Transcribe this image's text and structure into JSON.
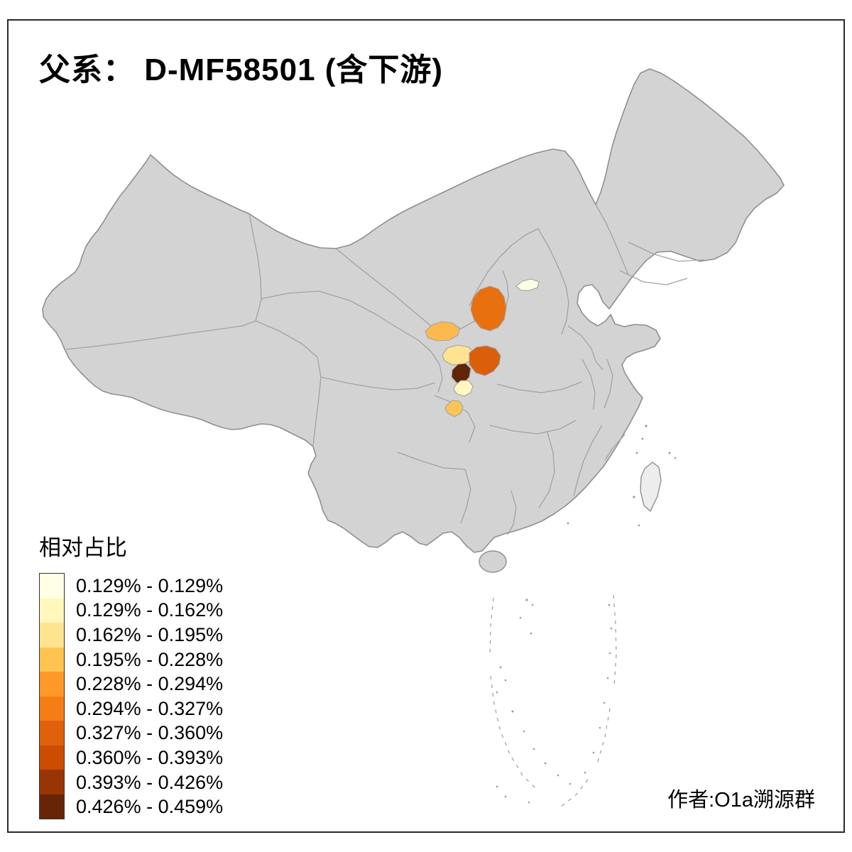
{
  "title": "父系： D-MF58501 (含下游)",
  "author": "作者:O1a溯源群",
  "legend": {
    "title": "相对占比"
  },
  "map_colors": {
    "land": "#D3D3D3",
    "border": "#8F8F8F",
    "inner_border": "#A2A2A2",
    "island": "#EDEDED",
    "sea_marks": "#9C9C9C",
    "background": "#FFFFFF"
  },
  "chart_data": {
    "type": "choropleth",
    "title": "父系： D-MF58501 (含下游)",
    "legend_title": "相对占比",
    "value_unit": "%",
    "classes": [
      {
        "label": "0.129% - 0.129%",
        "color": "#FFFFE5"
      },
      {
        "label": "0.129% - 0.162%",
        "color": "#FFF7BC"
      },
      {
        "label": "0.162% - 0.195%",
        "color": "#FEE391"
      },
      {
        "label": "0.195% - 0.228%",
        "color": "#FEC44F"
      },
      {
        "label": "0.228% - 0.294%",
        "color": "#FE9929"
      },
      {
        "label": "0.294% - 0.327%",
        "color": "#F57D15"
      },
      {
        "label": "0.327% - 0.360%",
        "color": "#E1600B"
      },
      {
        "label": "0.360% - 0.393%",
        "color": "#CC4C02"
      },
      {
        "label": "0.393% - 0.426%",
        "color": "#993404"
      },
      {
        "label": "0.426% - 0.459%",
        "color": "#662506"
      }
    ],
    "highlighted_regions": [
      {
        "name": "region-1",
        "position": "north-central",
        "legend_class": "0.294% - 0.327%",
        "color": "#E8700E"
      },
      {
        "name": "region-2",
        "position": "north, small sliver",
        "legend_class": "0.129% - 0.129%",
        "color": "#FEFEE3"
      },
      {
        "name": "region-3",
        "position": "central-west",
        "legend_class": "0.195% - 0.228%",
        "color": "#FDB94D"
      },
      {
        "name": "region-4",
        "position": "central",
        "legend_class": "0.162% - 0.195%",
        "color": "#FEE391"
      },
      {
        "name": "region-5",
        "position": "central",
        "legend_class": "0.327% - 0.360%",
        "color": "#DB5E0A"
      },
      {
        "name": "region-6",
        "position": "central, darkest highest value",
        "legend_class": "0.426% - 0.459%",
        "color": "#602406"
      },
      {
        "name": "region-7",
        "position": "central, below darkest",
        "legend_class": "0.129% - 0.162%",
        "color": "#FFF7C2"
      },
      {
        "name": "region-8",
        "position": "central-south small",
        "legend_class": "0.195% - 0.228%",
        "color": "#FCC457"
      }
    ]
  }
}
